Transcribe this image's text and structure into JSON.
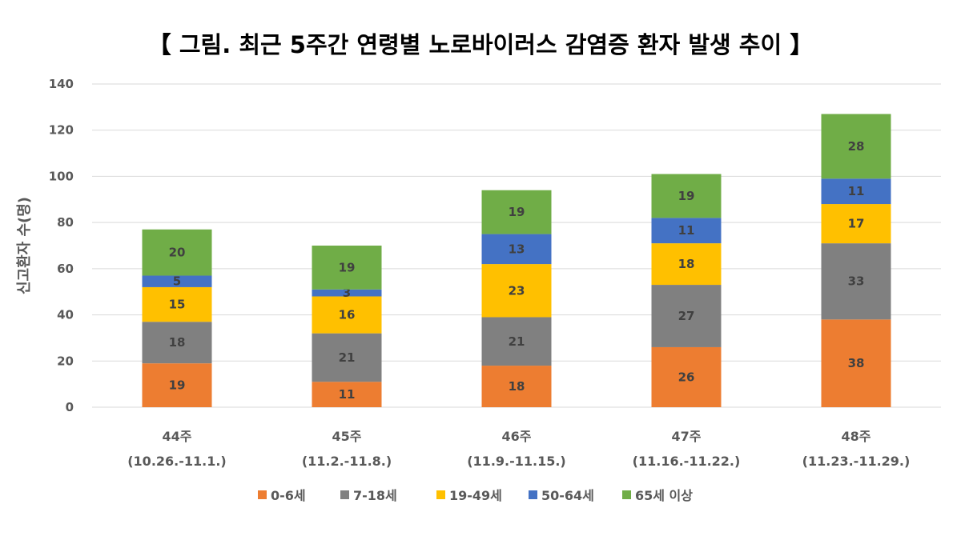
{
  "chart_data": {
    "type": "bar",
    "stacked": true,
    "title": "【 그림. 최근 5주간 연령별 노로바이러스 감염증 환자 발생 추이 】",
    "xlabel": "",
    "ylabel": "신고환자 수(명)",
    "ylim": [
      0,
      140
    ],
    "yticks": [
      0,
      20,
      40,
      60,
      80,
      100,
      120,
      140
    ],
    "grid": true,
    "legend": "bottom",
    "categories": [
      "44주",
      "45주",
      "46주",
      "47주",
      "48주"
    ],
    "category_dates": [
      "(10.26.-11.1.)",
      "(11.2.-11.8.)",
      "(11.9.-11.15.)",
      "(11.16.-11.22.)",
      "(11.23.-11.29.)"
    ],
    "series": [
      {
        "name": "0-6세",
        "color": "#ED7D31",
        "values": [
          19,
          11,
          18,
          26,
          38
        ]
      },
      {
        "name": "7-18세",
        "color": "#808080",
        "values": [
          18,
          21,
          21,
          27,
          33
        ]
      },
      {
        "name": "19-49세",
        "color": "#FFC000",
        "values": [
          15,
          16,
          23,
          18,
          17
        ]
      },
      {
        "name": "50-64세",
        "color": "#4472C4",
        "values": [
          5,
          3,
          13,
          11,
          11
        ]
      },
      {
        "name": "65세 이상",
        "color": "#70AD47",
        "values": [
          20,
          19,
          19,
          19,
          28
        ]
      }
    ]
  }
}
